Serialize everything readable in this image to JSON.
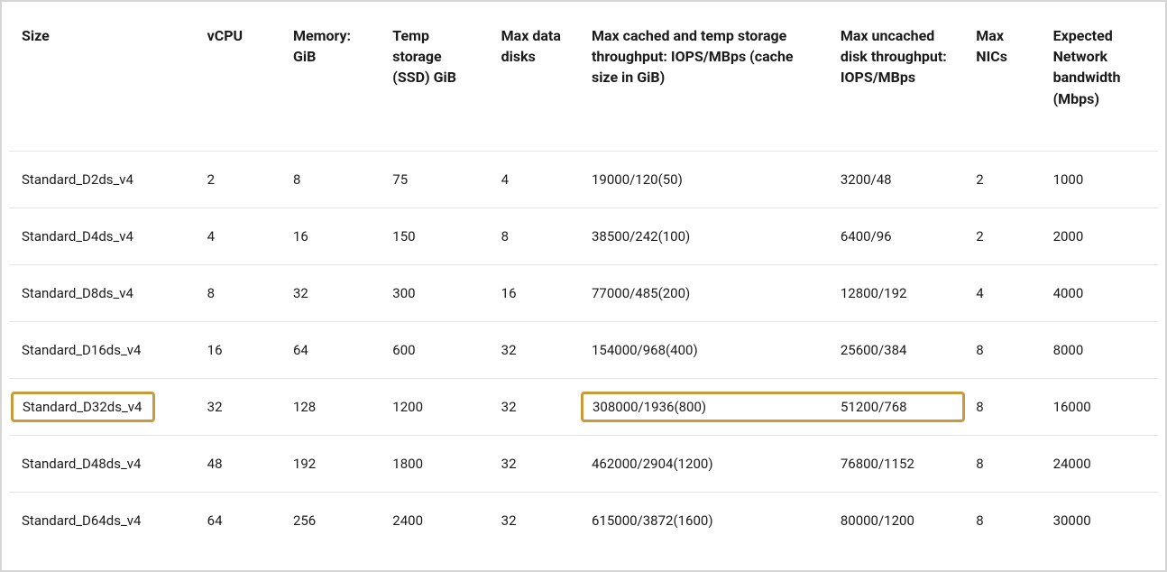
{
  "table": {
    "highlight_color": "#c99a3a",
    "border_color": "#e5e5e5",
    "columns": [
      "Size",
      "vCPU",
      "Memory: GiB",
      "Temp storage (SSD) GiB",
      "Max data disks",
      "Max cached and temp storage throughput: IOPS/MBps (cache size in GiB)",
      "Max uncached disk throughput: IOPS/MBps",
      "Max NICs",
      "Expected Network bandwidth (Mbps)"
    ],
    "rows": [
      {
        "size": "Standard_D2ds_v4",
        "vcpu": "2",
        "mem": "8",
        "temp": "75",
        "disks": "4",
        "cached": "19000/120(50)",
        "uncached": "3200/48",
        "nics": "2",
        "bw": "1000",
        "hl_size": false,
        "hl_th": false
      },
      {
        "size": "Standard_D4ds_v4",
        "vcpu": "4",
        "mem": "16",
        "temp": "150",
        "disks": "8",
        "cached": "38500/242(100)",
        "uncached": "6400/96",
        "nics": "2",
        "bw": "2000",
        "hl_size": false,
        "hl_th": false
      },
      {
        "size": "Standard_D8ds_v4",
        "vcpu": "8",
        "mem": "32",
        "temp": "300",
        "disks": "16",
        "cached": "77000/485(200)",
        "uncached": "12800/192",
        "nics": "4",
        "bw": "4000",
        "hl_size": false,
        "hl_th": false
      },
      {
        "size": "Standard_D16ds_v4",
        "vcpu": "16",
        "mem": "64",
        "temp": "600",
        "disks": "32",
        "cached": "154000/968(400)",
        "uncached": "25600/384",
        "nics": "8",
        "bw": "8000",
        "hl_size": false,
        "hl_th": false
      },
      {
        "size": "Standard_D32ds_v4",
        "vcpu": "32",
        "mem": "128",
        "temp": "1200",
        "disks": "32",
        "cached": "308000/1936(800)",
        "uncached": "51200/768",
        "nics": "8",
        "bw": "16000",
        "hl_size": true,
        "hl_th": true
      },
      {
        "size": "Standard_D48ds_v4",
        "vcpu": "48",
        "mem": "192",
        "temp": "1800",
        "disks": "32",
        "cached": "462000/2904(1200)",
        "uncached": "76800/1152",
        "nics": "8",
        "bw": "24000",
        "hl_size": false,
        "hl_th": false
      },
      {
        "size": "Standard_D64ds_v4",
        "vcpu": "64",
        "mem": "256",
        "temp": "2400",
        "disks": "32",
        "cached": "615000/3872(1600)",
        "uncached": "80000/1200",
        "nics": "8",
        "bw": "30000",
        "hl_size": false,
        "hl_th": false
      }
    ]
  }
}
